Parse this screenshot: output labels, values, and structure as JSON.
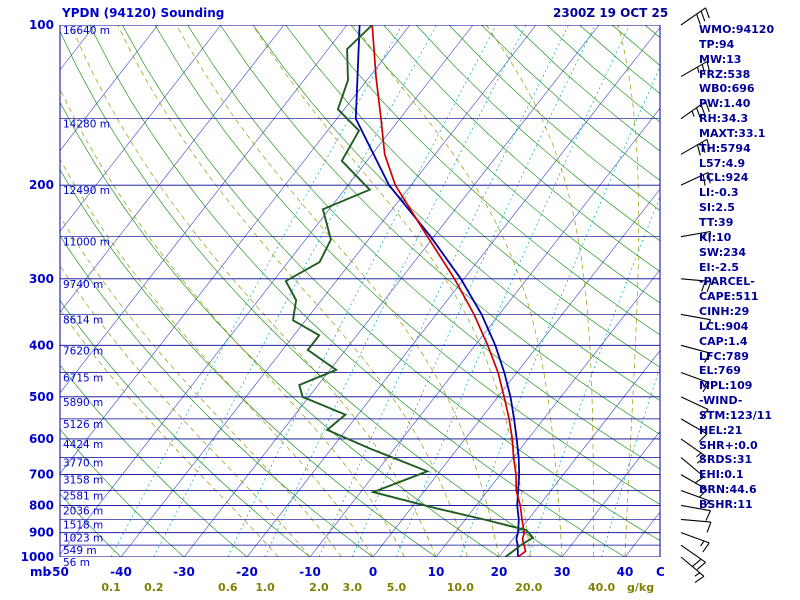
{
  "header": {
    "title": "YPDN (94120) Sounding",
    "datetime": "2300Z 19 OCT 25"
  },
  "colors": {
    "title": "#0000cc",
    "axis_text": "#0000cc",
    "indices_text": "#000099",
    "isotherm": "#3344cc",
    "pressure_line": "#000099",
    "dry_adiabat": "#008800",
    "moist_adiabat": "#999900",
    "mixing_ratio": "#00aaaa",
    "temperature_trace": "#cc0000",
    "dewpoint_trace": "#1f5c1f",
    "parcel_trace": "#0000aa",
    "wind_barb": "#000000",
    "mixing_label": "#808000"
  },
  "axes": {
    "pressure_unit": "mb",
    "pressure_ticks": [
      100,
      200,
      300,
      400,
      500,
      600,
      700,
      800,
      900,
      1000
    ],
    "temp_unit": "C",
    "temp_ticks": [
      -50,
      -40,
      -30,
      -20,
      -10,
      0,
      10,
      20,
      30,
      40
    ],
    "mixing_ratio_unit": "g/kg",
    "mixing_ratio_ticks": [
      "0.1",
      "0.2",
      "0.6",
      "1.0",
      "2.0",
      "3.0",
      "5.0",
      "10.0",
      "20.0",
      "40.0"
    ],
    "height_labels": [
      {
        "p": 100,
        "label": "16640 m"
      },
      {
        "p": 150,
        "label": "14280 m"
      },
      {
        "p": 200,
        "label": "12490 m"
      },
      {
        "p": 250,
        "label": "11000 m"
      },
      {
        "p": 300,
        "label": "9740 m"
      },
      {
        "p": 350,
        "label": "8614 m"
      },
      {
        "p": 400,
        "label": "7620 m"
      },
      {
        "p": 450,
        "label": "6715 m"
      },
      {
        "p": 500,
        "label": "5890 m"
      },
      {
        "p": 550,
        "label": "5126 m"
      },
      {
        "p": 600,
        "label": "4424 m"
      },
      {
        "p": 650,
        "label": "3770 m"
      },
      {
        "p": 700,
        "label": "3158 m"
      },
      {
        "p": 750,
        "label": "2581 m"
      },
      {
        "p": 800,
        "label": "2036 m"
      },
      {
        "p": 850,
        "label": "1518 m"
      },
      {
        "p": 900,
        "label": "1023 m"
      },
      {
        "p": 950,
        "label": "549 m"
      },
      {
        "p": 1000,
        "label": "56 m"
      }
    ]
  },
  "chart_data": {
    "type": "skewt_log_p",
    "title": "YPDN (94120) Sounding",
    "time": "2300Z 19 OCT 25",
    "pressure_axis_mb": {
      "min": 100,
      "max": 1000,
      "scale": "log"
    },
    "temperature_axis_c": {
      "min": -50,
      "max": 40
    },
    "isotherm_step_c": 10,
    "temperature_profile_p_t": [
      [
        1000,
        23
      ],
      [
        975,
        23.5
      ],
      [
        950,
        22.5
      ],
      [
        925,
        21.5
      ],
      [
        900,
        21
      ],
      [
        850,
        19
      ],
      [
        800,
        17
      ],
      [
        750,
        14.5
      ],
      [
        700,
        12.5
      ],
      [
        650,
        10
      ],
      [
        600,
        7.5
      ],
      [
        550,
        4.5
      ],
      [
        500,
        1
      ],
      [
        450,
        -3
      ],
      [
        400,
        -8
      ],
      [
        350,
        -14
      ],
      [
        300,
        -21.5
      ],
      [
        250,
        -31
      ],
      [
        200,
        -42.5
      ],
      [
        175,
        -48
      ],
      [
        150,
        -53
      ],
      [
        125,
        -59
      ],
      [
        100,
        -66
      ]
    ],
    "dewpoint_profile_p_t": [
      [
        1000,
        21
      ],
      [
        975,
        21.5
      ],
      [
        950,
        22
      ],
      [
        920,
        23
      ],
      [
        890,
        21
      ],
      [
        850,
        13
      ],
      [
        810,
        4
      ],
      [
        755,
        -8
      ],
      [
        690,
        -2
      ],
      [
        625,
        -14
      ],
      [
        577,
        -23
      ],
      [
        540,
        -22
      ],
      [
        500,
        -31
      ],
      [
        475,
        -33
      ],
      [
        445,
        -29
      ],
      [
        408,
        -36
      ],
      [
        383,
        -36
      ],
      [
        359,
        -42
      ],
      [
        329,
        -44
      ],
      [
        303,
        -48
      ],
      [
        279,
        -45
      ],
      [
        253,
        -46
      ],
      [
        222,
        -51
      ],
      [
        204,
        -46
      ],
      [
        180,
        -54
      ],
      [
        158,
        -55
      ],
      [
        144,
        -61
      ],
      [
        127,
        -63
      ],
      [
        111,
        -67
      ],
      [
        100,
        -66
      ]
    ],
    "parcel_profile_p_t": [
      [
        1000,
        23
      ],
      [
        950,
        21.5
      ],
      [
        924,
        20.5
      ],
      [
        900,
        20
      ],
      [
        850,
        18.5
      ],
      [
        800,
        16.5
      ],
      [
        750,
        14.8
      ],
      [
        700,
        13
      ],
      [
        650,
        10.8
      ],
      [
        600,
        8.2
      ],
      [
        550,
        5.3
      ],
      [
        500,
        2
      ],
      [
        450,
        -2
      ],
      [
        400,
        -6.8
      ],
      [
        350,
        -12.8
      ],
      [
        300,
        -20.5
      ],
      [
        250,
        -30.5
      ],
      [
        200,
        -43.5
      ],
      [
        150,
        -57
      ],
      [
        100,
        -68
      ]
    ],
    "winds_p_dir_spd": [
      {
        "p": 100,
        "dir": 55,
        "spd": 30
      },
      {
        "p": 125,
        "dir": 60,
        "spd": 25
      },
      {
        "p": 150,
        "dir": 55,
        "spd": 35
      },
      {
        "p": 175,
        "dir": 60,
        "spd": 30
      },
      {
        "p": 200,
        "dir": 65,
        "spd": 20
      },
      {
        "p": 250,
        "dir": 80,
        "spd": 15
      },
      {
        "p": 300,
        "dir": 95,
        "spd": 20
      },
      {
        "p": 350,
        "dir": 100,
        "spd": 10
      },
      {
        "p": 400,
        "dir": 105,
        "spd": 10
      },
      {
        "p": 450,
        "dir": 110,
        "spd": 10
      },
      {
        "p": 500,
        "dir": 115,
        "spd": 10
      },
      {
        "p": 550,
        "dir": 120,
        "spd": 10
      },
      {
        "p": 600,
        "dir": 125,
        "spd": 15
      },
      {
        "p": 650,
        "dir": 130,
        "spd": 10
      },
      {
        "p": 700,
        "dir": 120,
        "spd": 10
      },
      {
        "p": 750,
        "dir": 110,
        "spd": 5
      },
      {
        "p": 800,
        "dir": 100,
        "spd": 10
      },
      {
        "p": 850,
        "dir": 95,
        "spd": 10
      },
      {
        "p": 900,
        "dir": 110,
        "spd": 15
      },
      {
        "p": 950,
        "dir": 125,
        "spd": 20
      },
      {
        "p": 1000,
        "dir": 130,
        "spd": 15
      }
    ]
  },
  "indices": {
    "lines": [
      "WMO:94120",
      "TP:94",
      "MW:13",
      "FRZ:538",
      "WB0:696",
      "PW:1.40",
      "RH:34.3",
      "MAXT:33.1",
      "TH:5794",
      "L57:4.9",
      "LCL:924",
      "LI:-0.3",
      "SI:2.5",
      "TT:39",
      "KI:10",
      "SW:234",
      "EI:-2.5",
      "-PARCEL-",
      "CAPE:511",
      "CINH:29",
      "LCL:904",
      "CAP:1.4",
      "LFC:789",
      "EL:769",
      "MPL:109",
      "-WIND-",
      "STM:123/11",
      "HEL:21",
      "SHR+:0.0",
      "SRDS:31",
      "EHI:0.1",
      "BRN:44.6",
      "BSHR:11"
    ]
  }
}
